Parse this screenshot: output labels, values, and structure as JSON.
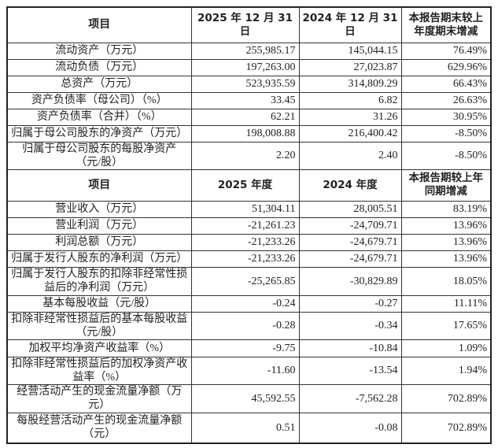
{
  "balance": {
    "headers": [
      "项目",
      "2025 年 12 月 31 日",
      "2024 年 12 月 31 日",
      "本报告期末较上年度期末增减"
    ],
    "rows": [
      [
        "流动资产（万元）",
        "255,985.17",
        "145,044.15",
        "76.49%"
      ],
      [
        "流动负债（万元）",
        "197,263.00",
        "27,023.87",
        "629.96%"
      ],
      [
        "总资产（万元）",
        "523,935.59",
        "314,809.29",
        "66.43%"
      ],
      [
        "资产负债率（母公司）（%）",
        "33.45",
        "6.82",
        "26.63%"
      ],
      [
        "资产负债率（合并）（%）",
        "62.21",
        "31.26",
        "30.95%"
      ],
      [
        "归属于母公司股东的净资产（万元）",
        "198,008.88",
        "216,400.42",
        "-8.50%"
      ],
      [
        "归属于母公司股东的每股净资产（元/股）",
        "2.20",
        "2.40",
        "-8.50%"
      ]
    ]
  },
  "income": {
    "headers": [
      "项目",
      "2025 年度",
      "2024 年度",
      "本报告期较上年同期增减"
    ],
    "rows": [
      [
        "营业收入（万元）",
        "51,304.11",
        "28,005.51",
        "83.19%"
      ],
      [
        "营业利润（万元）",
        "-21,261.23",
        "-24,709.71",
        "13.96%"
      ],
      [
        "利润总额（万元）",
        "-21,233.26",
        "-24,679.71",
        "13.96%"
      ],
      [
        "归属于发行人股东的净利润（万元）",
        "-21,233.26",
        "-24,679.71",
        "13.96%"
      ],
      [
        "归属于发行人股东的扣除非经常性损益后的净利润（万元）",
        "-25,265.85",
        "-30,829.89",
        "18.05%"
      ],
      [
        "基本每股收益（元/股）",
        "-0.24",
        "-0.27",
        "11.11%"
      ],
      [
        "扣除非经常性损益后的基本每股收益（元/股）",
        "-0.28",
        "-0.34",
        "17.65%"
      ],
      [
        "加权平均净资产收益率（%）",
        "-9.75",
        "-10.84",
        "1.09%"
      ],
      [
        "扣除非经常性损益后的加权净资产收益率（%）",
        "-11.60",
        "-13.54",
        "1.94%"
      ],
      [
        "经营活动产生的现金流量净额（万元）",
        "45,592.55",
        "-7,562.28",
        "702.89%"
      ],
      [
        "每股经营活动产生的现金流量净额（元）",
        "0.51",
        "-0.08",
        "702.89%"
      ]
    ]
  }
}
